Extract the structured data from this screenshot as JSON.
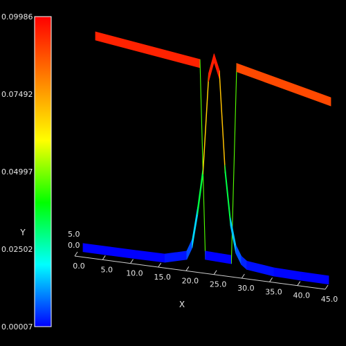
{
  "chart_data": {
    "type": "surface",
    "colorbar": {
      "min": 7e-05,
      "max": 0.09986,
      "tick_labels": [
        "0.09986",
        "0.07492",
        "0.04997",
        "0.02502",
        "0.00007"
      ],
      "colormap": [
        "#0000ff",
        "#00ffff",
        "#00ff00",
        "#ffff00",
        "#ff8000",
        "#ff0000"
      ]
    },
    "axes": {
      "x_label": "X",
      "y_label": "Y",
      "x_ticks": [
        "0.0",
        "5.0",
        "10.0",
        "15.0",
        "20.0",
        "25.0",
        "30.0",
        "35.0",
        "40.0",
        "45.0"
      ],
      "z_ticks": [
        "0.0",
        "5.0"
      ],
      "xlim": [
        0,
        45
      ],
      "zlim": [
        0,
        5
      ]
    },
    "series": [
      {
        "z": 5,
        "x": [
          0,
          20,
          21,
          22,
          23,
          24,
          25,
          26,
          27,
          45
        ],
        "values": [
          0.097,
          0.092,
          7e-05,
          7e-05,
          7e-05,
          7e-05,
          7e-05,
          7e-05,
          0.093,
          0.084
        ]
      },
      {
        "z": 0,
        "x": [
          0,
          5,
          10,
          15,
          19,
          20,
          21,
          22,
          23,
          24,
          25,
          26,
          27,
          28,
          29,
          30,
          35,
          40,
          45
        ],
        "values": [
          7e-05,
          7e-05,
          8e-05,
          0.0002,
          0.003,
          0.009,
          0.025,
          0.045,
          0.09,
          0.0998,
          0.092,
          0.047,
          0.022,
          0.009,
          0.004,
          0.002,
          0.0005,
          0.0002,
          0.0001
        ]
      }
    ]
  }
}
